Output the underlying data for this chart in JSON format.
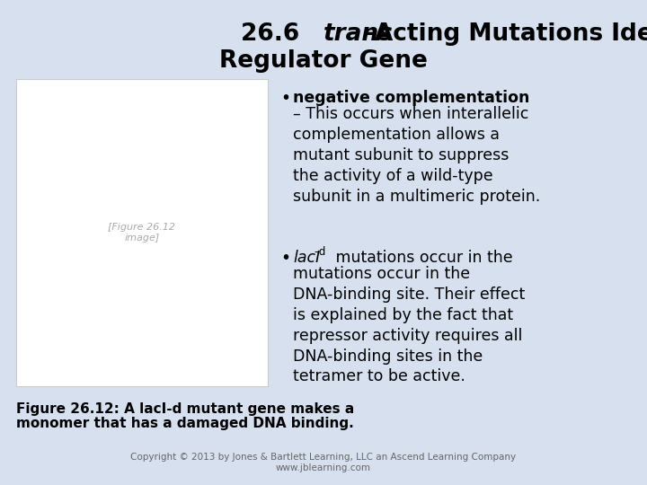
{
  "background_color": "#d6e0ee",
  "title_fontsize": 19,
  "title_color": "#000000",
  "bullet_fontsize": 12.5,
  "caption_fontsize": 11,
  "footer_fontsize": 7.5,
  "footer_color": "#666666",
  "footer_text": "Copyright © 2013 by Jones & Bartlett Learning, LLC an Ascend Learning Company\nwww.jblearning.com",
  "bullet1_bold": "negative complementation",
  "bullet1_rest": "– This occurs when interallelic\ncomplementation allows a\nmutant subunit to suppress\nthe activity of a wild-type\nsubunit in a multimeric protein.",
  "bullet2_italic": "lacI",
  "bullet2_sup": "–d",
  "bullet2_rest": "mutations occur in the\nDNA-binding site. Their effect\nis explained by the fact that\nrepressor activity requires all\nDNA-binding sites in the\ntetramer to be active.",
  "figure_caption_line1": "Figure 26.12: A lacI-d mutant gene makes a",
  "figure_caption_line2": "monomer that has a damaged DNA binding."
}
